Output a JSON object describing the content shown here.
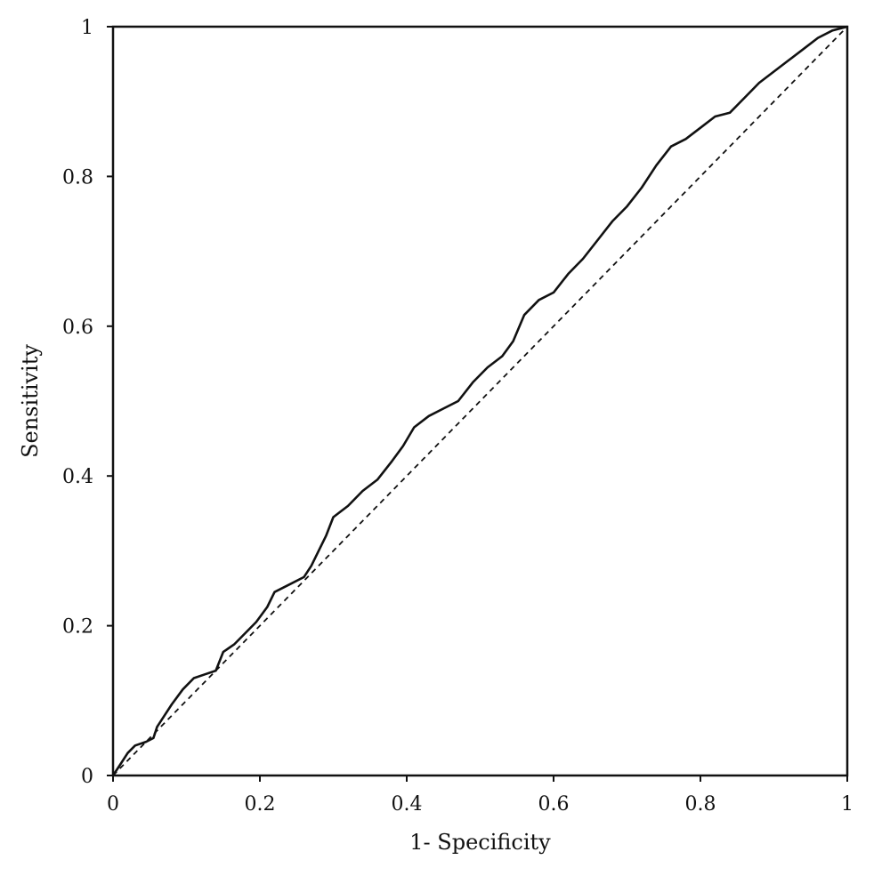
{
  "chart_data": {
    "type": "line",
    "title": "",
    "xlabel": "1- Specificity",
    "ylabel": "Sensitivity",
    "xlim": [
      0,
      1
    ],
    "ylim": [
      0,
      1
    ],
    "x_ticks": [
      "0",
      "0.2",
      "0.4",
      "0.6",
      "0.8",
      "1"
    ],
    "y_ticks": [
      "0",
      "0.2",
      "0.4",
      "0.6",
      "0.8",
      "1"
    ],
    "grid": false,
    "legend": "none",
    "series": [
      {
        "style": "solid",
        "color": "#111111",
        "points": [
          [
            0,
            0
          ],
          [
            0.01,
            0.015
          ],
          [
            0.02,
            0.03
          ],
          [
            0.03,
            0.04
          ],
          [
            0.045,
            0.045
          ],
          [
            0.055,
            0.05
          ],
          [
            0.06,
            0.065
          ],
          [
            0.07,
            0.08
          ],
          [
            0.08,
            0.095
          ],
          [
            0.095,
            0.115
          ],
          [
            0.11,
            0.13
          ],
          [
            0.125,
            0.135
          ],
          [
            0.14,
            0.14
          ],
          [
            0.15,
            0.165
          ],
          [
            0.165,
            0.175
          ],
          [
            0.18,
            0.19
          ],
          [
            0.195,
            0.205
          ],
          [
            0.21,
            0.225
          ],
          [
            0.22,
            0.245
          ],
          [
            0.24,
            0.255
          ],
          [
            0.26,
            0.265
          ],
          [
            0.27,
            0.28
          ],
          [
            0.28,
            0.3
          ],
          [
            0.29,
            0.32
          ],
          [
            0.3,
            0.345
          ],
          [
            0.32,
            0.36
          ],
          [
            0.34,
            0.38
          ],
          [
            0.36,
            0.395
          ],
          [
            0.38,
            0.42
          ],
          [
            0.395,
            0.44
          ],
          [
            0.41,
            0.465
          ],
          [
            0.43,
            0.48
          ],
          [
            0.45,
            0.49
          ],
          [
            0.47,
            0.5
          ],
          [
            0.49,
            0.525
          ],
          [
            0.51,
            0.545
          ],
          [
            0.53,
            0.56
          ],
          [
            0.545,
            0.58
          ],
          [
            0.56,
            0.615
          ],
          [
            0.58,
            0.635
          ],
          [
            0.6,
            0.645
          ],
          [
            0.62,
            0.67
          ],
          [
            0.64,
            0.69
          ],
          [
            0.66,
            0.715
          ],
          [
            0.68,
            0.74
          ],
          [
            0.7,
            0.76
          ],
          [
            0.72,
            0.785
          ],
          [
            0.74,
            0.815
          ],
          [
            0.76,
            0.84
          ],
          [
            0.78,
            0.85
          ],
          [
            0.8,
            0.865
          ],
          [
            0.82,
            0.88
          ],
          [
            0.84,
            0.885
          ],
          [
            0.86,
            0.905
          ],
          [
            0.88,
            0.925
          ],
          [
            0.9,
            0.94
          ],
          [
            0.92,
            0.955
          ],
          [
            0.94,
            0.97
          ],
          [
            0.96,
            0.985
          ],
          [
            0.98,
            0.995
          ],
          [
            1,
            1
          ]
        ]
      },
      {
        "style": "dashed",
        "color": "#111111",
        "points": [
          [
            0,
            0
          ],
          [
            1,
            1
          ]
        ]
      }
    ]
  }
}
